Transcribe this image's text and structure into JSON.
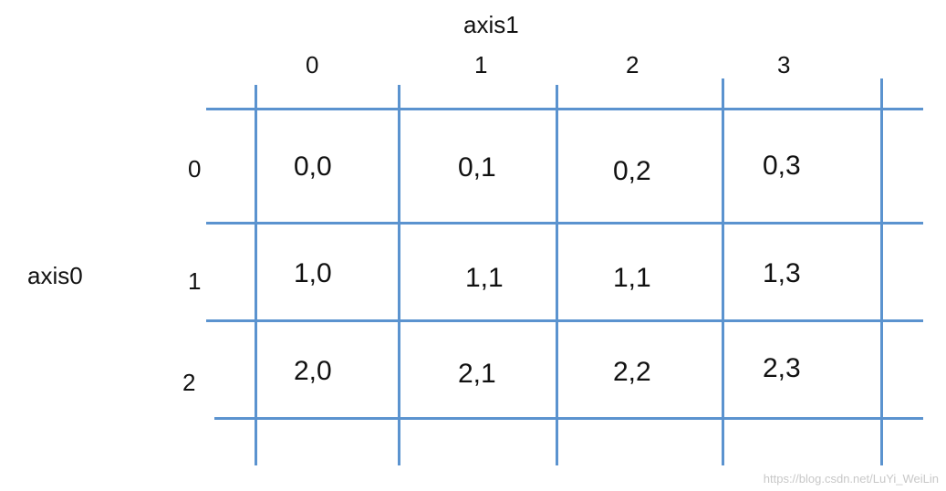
{
  "axis1_label": "axis1",
  "axis0_label": "axis0",
  "column_labels": [
    "0",
    "1",
    "2",
    "3"
  ],
  "row_labels": [
    "0",
    "1",
    "2"
  ],
  "cells": [
    [
      "0,0",
      "0,1",
      "0,2",
      "0,3"
    ],
    [
      "1,0",
      "1,1",
      "1,1",
      "1,3"
    ],
    [
      "2,0",
      "2,1",
      "2,2",
      "2,3"
    ]
  ],
  "watermark": "https://blog.csdn.net/LuYi_WeiLin",
  "colors": {
    "grid_line": "#5b93cf",
    "text": "#111111",
    "watermark": "#c8c8c8"
  }
}
